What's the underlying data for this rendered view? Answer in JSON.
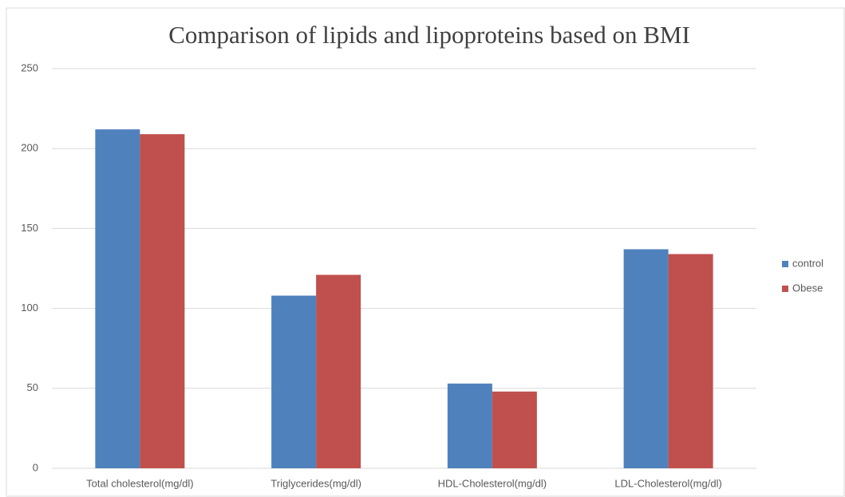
{
  "chart_data": {
    "type": "bar",
    "title": "Comparison of lipids and lipoproteins based on BMI",
    "categories": [
      "Total cholesterol(mg/dl)",
      "Triglycerides(mg/dl)",
      "HDL-Cholesterol(mg/dl)",
      "LDL-Cholesterol(mg/dl)"
    ],
    "series": [
      {
        "name": "control",
        "color": "#4f81bd",
        "values": [
          212,
          108,
          53,
          137
        ]
      },
      {
        "name": "Obese",
        "color": "#c0504d",
        "values": [
          209,
          121,
          48,
          134
        ]
      }
    ],
    "ylim": [
      0,
      250
    ],
    "yticks": [
      0,
      50,
      100,
      150,
      200,
      250
    ],
    "grid": true,
    "legend": "right"
  }
}
